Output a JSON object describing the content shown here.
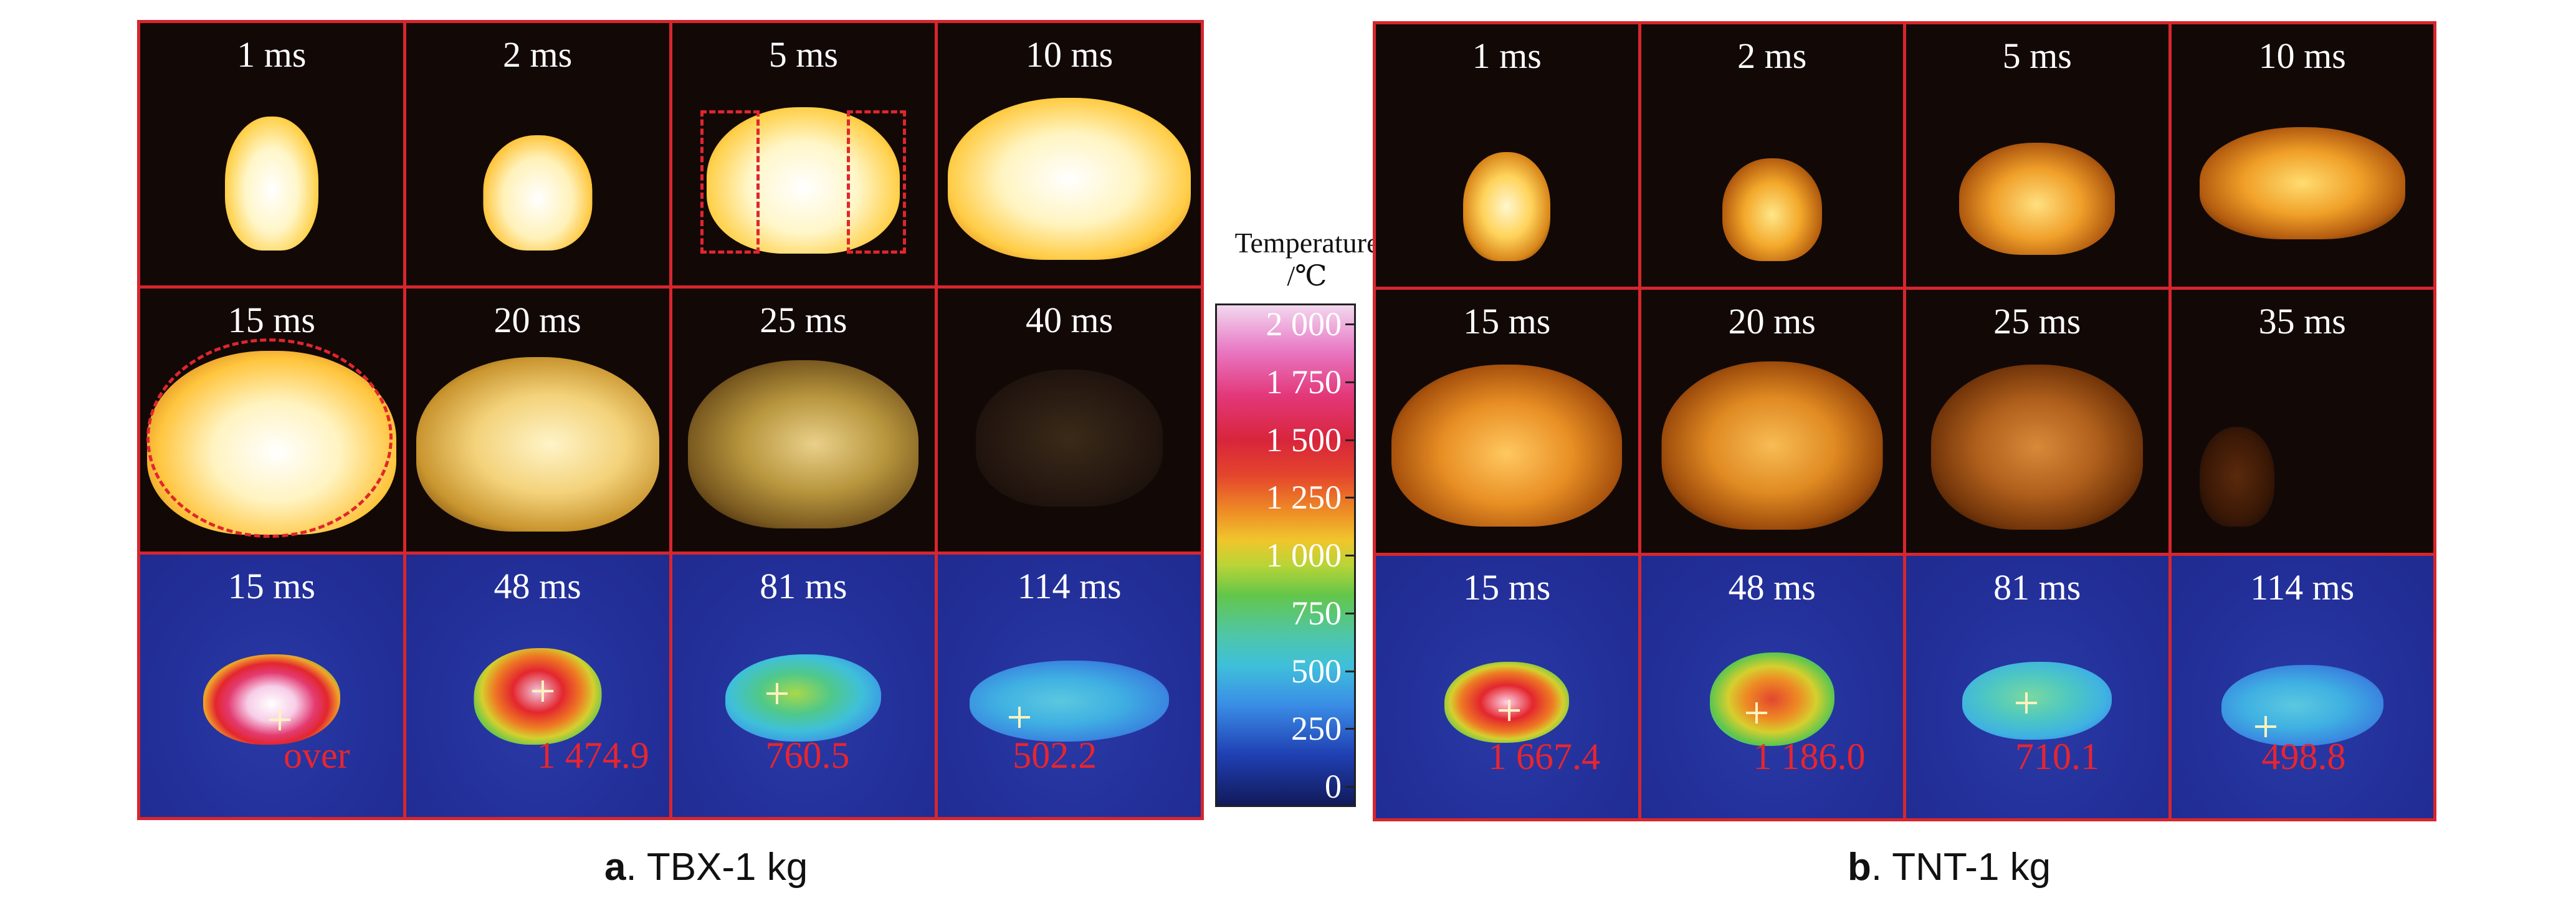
{
  "panel_a": {
    "caption_letter": "a",
    "caption_text": ". TBX-1 kg",
    "row1": [
      "1 ms",
      "2 ms",
      "5 ms",
      "10 ms"
    ],
    "row2": [
      "15 ms",
      "20 ms",
      "25 ms",
      "40 ms"
    ],
    "row3": [
      "15 ms",
      "48 ms",
      "81 ms",
      "114 ms"
    ],
    "temps": [
      "over",
      "1 474.9",
      "760.5",
      "502.2"
    ]
  },
  "panel_b": {
    "caption_letter": "b",
    "caption_text": ". TNT-1 kg",
    "row1": [
      "1 ms",
      "2 ms",
      "5 ms",
      "10 ms"
    ],
    "row2": [
      "15 ms",
      "20 ms",
      "25 ms",
      "35 ms"
    ],
    "row3": [
      "15 ms",
      "48 ms",
      "81 ms",
      "114 ms"
    ],
    "temps": [
      "1 667.4",
      "1 186.0",
      "710.1",
      "498.8"
    ]
  },
  "colorbar": {
    "title_line1": "Temperature",
    "title_line2": "/℃",
    "ticks": [
      "2 000",
      "1 750",
      "1 500",
      "1 250",
      "1 000",
      "750",
      "500",
      "250",
      "0"
    ],
    "range": [
      0,
      2000
    ]
  },
  "colors": {
    "frame": "#d7262e",
    "annotation_text": "#e8252f"
  }
}
